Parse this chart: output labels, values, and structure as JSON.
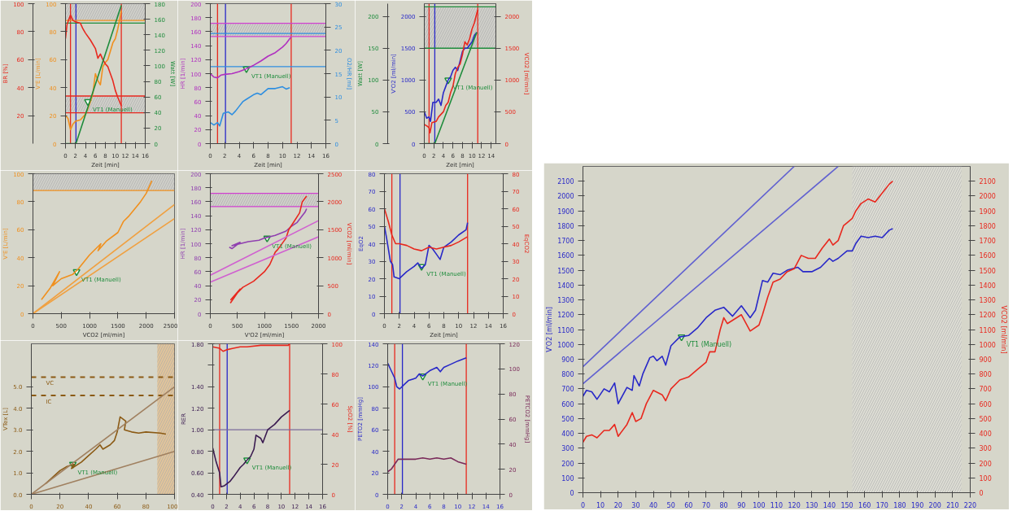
{
  "chart_data": [
    {
      "type": "line",
      "xlabel": "Zeit [min]",
      "ylabel": "V'E [L/min]",
      "y2label": "Watt [W]",
      "y3label": "BR [%]",
      "xlim": [
        0,
        16
      ],
      "xticks": [
        0,
        2,
        4,
        6,
        8,
        10,
        12,
        14,
        16
      ],
      "ylim": [
        0,
        100
      ],
      "yticks": [
        0,
        20,
        40,
        60,
        80,
        100
      ],
      "y2lim": [
        0,
        180
      ],
      "y2ticks": [
        0,
        20,
        40,
        60,
        80,
        100,
        120,
        140,
        160,
        180
      ],
      "y3lim": [
        0,
        100
      ],
      "y3ticks": [
        20,
        40,
        60,
        80,
        100
      ],
      "series": [
        {
          "color": "#f0901e",
          "x": [
            0,
            0.5,
            1,
            1.5,
            2,
            3,
            4,
            4.5,
            5,
            5.5,
            6,
            6.5,
            7,
            7.5,
            8,
            8.5,
            9,
            9.5,
            10,
            10.5,
            11.2
          ],
          "values": [
            20,
            18,
            10,
            14,
            16,
            17,
            21,
            25,
            30,
            36,
            50,
            45,
            42,
            55,
            58,
            60,
            66,
            72,
            75,
            82,
            95
          ]
        },
        {
          "color": "#e8281e",
          "axis": "y3",
          "x": [
            0,
            0.3,
            1,
            1.5,
            2,
            3,
            3.5,
            4,
            5,
            6,
            6.5,
            7,
            7.5,
            8,
            8.5,
            9,
            9.5,
            10,
            10.5,
            11.2
          ],
          "values": [
            75,
            85,
            92,
            88,
            87,
            86,
            82,
            79,
            74,
            68,
            61,
            64,
            60,
            57,
            55,
            50,
            45,
            38,
            33,
            27
          ]
        },
        {
          "color": "#1e8c3c",
          "axis": "y2",
          "x": [
            0,
            2.1,
            11.2
          ],
          "values": [
            0,
            0,
            178
          ]
        }
      ],
      "ref_lines": [
        {
          "axis": "x",
          "value": 1.0,
          "color": "#e8281e"
        },
        {
          "axis": "x",
          "value": 2.1,
          "color": "#2828c8"
        },
        {
          "axis": "x",
          "value": 11.2,
          "color": "#e8281e"
        },
        {
          "axis": "y",
          "value": 88,
          "color": "#f0901e"
        },
        {
          "axis": "y2",
          "value": 155,
          "color": "#1e8c3c"
        },
        {
          "axis": "y3",
          "value": 34,
          "color": "#e8281e"
        },
        {
          "axis": "y3",
          "value": 22,
          "color": "#e8281e"
        }
      ],
      "bands": [
        {
          "axis": "y3",
          "from": 22,
          "to": 34,
          "color": "#c8c8c8"
        },
        {
          "axis": "y",
          "from": 88,
          "to": 100,
          "color": "#c8c8c8"
        }
      ],
      "annotations": [
        {
          "text": "VT1 (Manuell)",
          "x": 4.5,
          "y": 30
        }
      ]
    },
    {
      "type": "line",
      "xlabel": "Zeit [min]",
      "ylabel": "HR [1/min]",
      "y2label": "O2/HR [ml]",
      "xlim": [
        0,
        16
      ],
      "xticks": [
        0,
        2,
        4,
        6,
        8,
        10,
        12,
        14,
        16
      ],
      "ylim": [
        0,
        200
      ],
      "yticks": [
        0,
        20,
        40,
        60,
        80,
        100,
        120,
        140,
        160,
        180,
        200
      ],
      "y2lim": [
        0,
        30
      ],
      "y2ticks": [
        0,
        5,
        10,
        15,
        20,
        25,
        30
      ],
      "series": [
        {
          "color": "#b030c0",
          "x": [
            0,
            0.5,
            1,
            1.5,
            2,
            3,
            4,
            5,
            6,
            7,
            8,
            9,
            10,
            10.5,
            11,
            11.2
          ],
          "values": [
            100,
            95,
            94,
            98,
            99,
            100,
            103,
            107,
            112,
            118,
            125,
            130,
            138,
            143,
            150,
            152
          ]
        },
        {
          "color": "#2e8ee0",
          "axis": "y2",
          "x": [
            0,
            0.5,
            1,
            1.3,
            1.8,
            2.5,
            3,
            3.5,
            4,
            4.5,
            5,
            6,
            6.5,
            7,
            8,
            9,
            10,
            10.5,
            11
          ],
          "values": [
            4.5,
            4,
            4.5,
            3.8,
            6.5,
            6.8,
            6.2,
            7,
            8,
            9,
            9.5,
            10.5,
            10.8,
            10.5,
            11.8,
            11.8,
            12.2,
            11.7,
            12
          ]
        }
      ],
      "ref_lines": [
        {
          "axis": "x",
          "value": 1.0,
          "color": "#e8281e"
        },
        {
          "axis": "x",
          "value": 2.1,
          "color": "#2828c8"
        },
        {
          "axis": "x",
          "value": 11.2,
          "color": "#e8281e"
        },
        {
          "axis": "y",
          "value": 172,
          "color": "#d040d0"
        },
        {
          "axis": "y",
          "value": 153,
          "color": "#d040d0"
        },
        {
          "axis": "y2",
          "value": 23.6,
          "color": "#2e8ee0"
        },
        {
          "axis": "y2",
          "value": 16.5,
          "color": "#2e8ee0"
        }
      ],
      "bands": [
        {
          "axis": "y",
          "from": 153,
          "to": 172,
          "color": "#c8c8c8"
        }
      ],
      "annotations": [
        {
          "text": "VT1 (Manuell)",
          "x": 5,
          "y": 107
        }
      ]
    },
    {
      "type": "line",
      "xlabel": "Zeit [min]",
      "ylabel": "V'O2 [ml/min]",
      "y2label": "VCO2 [ml/min]",
      "y3label": "Watt [W]",
      "xlim": [
        0,
        15
      ],
      "xticks": [
        0,
        2,
        4,
        6,
        8,
        10,
        12,
        14
      ],
      "ylim": [
        0,
        2200
      ],
      "yticks": [
        0,
        500,
        1000,
        1500,
        2000
      ],
      "y2lim": [
        0,
        2200
      ],
      "y2ticks": [
        0,
        500,
        1000,
        1500,
        2000
      ],
      "y3lim": [
        0,
        220
      ],
      "y3ticks": [
        0,
        50,
        100,
        150,
        200
      ],
      "series": [
        {
          "color": "#2828c8",
          "x": [
            0,
            0.5,
            1,
            1.3,
            1.8,
            2.5,
            3,
            3.5,
            4,
            4.5,
            5,
            5.5,
            6,
            6.5,
            7,
            7.5,
            8,
            8.5,
            9,
            10,
            10.5,
            11
          ],
          "values": [
            500,
            400,
            420,
            350,
            650,
            650,
            700,
            600,
            800,
            900,
            1000,
            1050,
            1150,
            1200,
            1150,
            1300,
            1450,
            1500,
            1500,
            1600,
            1700,
            1750
          ]
        },
        {
          "color": "#e8281e",
          "axis": "y2",
          "x": [
            0,
            0.5,
            1,
            1.2,
            1.6,
            2.5,
            3,
            4,
            4.5,
            5,
            5.5,
            6,
            6.5,
            7,
            7.5,
            8,
            8.5,
            9,
            9.5,
            10,
            10.5,
            11,
            11.2
          ],
          "values": [
            300,
            280,
            250,
            170,
            330,
            350,
            420,
            500,
            600,
            650,
            800,
            900,
            1100,
            1200,
            1250,
            1400,
            1600,
            1550,
            1650,
            1800,
            1900,
            2050,
            2100
          ]
        },
        {
          "color": "#1e8c3c",
          "axis": "y3",
          "x": [
            0,
            2.2,
            11
          ],
          "values": [
            0,
            0,
            175
          ]
        }
      ],
      "ref_lines": [
        {
          "axis": "x",
          "value": 1.0,
          "color": "#e8281e"
        },
        {
          "axis": "x",
          "value": 2.2,
          "color": "#2828c8"
        },
        {
          "axis": "x",
          "value": 11.2,
          "color": "#e8281e"
        },
        {
          "axis": "y",
          "value": 2150,
          "color": "#1e8c3c"
        },
        {
          "axis": "y",
          "value": 1500,
          "color": "#1e8c3c"
        }
      ],
      "bands": [
        {
          "axis": "y",
          "from": 1500,
          "to": 2150,
          "color": "#c8c8c8"
        }
      ],
      "annotations": [
        {
          "text": "VT1 (Manuell)",
          "x": 5,
          "y": 1000
        }
      ]
    },
    {
      "type": "line",
      "xlabel": "VCO2 [ml/min]",
      "ylabel": "V'E [L/min]",
      "xlim": [
        0,
        2500
      ],
      "xticks": [
        0,
        500,
        1000,
        1500,
        2000,
        2500
      ],
      "ylim": [
        0,
        100
      ],
      "yticks": [
        0,
        20,
        40,
        60,
        80,
        100
      ],
      "series": [
        {
          "color": "#f0901e",
          "x": [
            150,
            300,
            400,
            470,
            350,
            500,
            700,
            800,
            1000,
            1200,
            1150,
            1300,
            1500,
            1600,
            1700,
            1800,
            1900,
            2000,
            2100
          ],
          "values": [
            10,
            18,
            25,
            30,
            20,
            25,
            28,
            32,
            42,
            50,
            45,
            52,
            58,
            66,
            70,
            75,
            80,
            86,
            95
          ]
        },
        {
          "color": "#f0a040",
          "x": [
            0,
            2500
          ],
          "values": [
            0,
            78
          ]
        },
        {
          "color": "#f0a040",
          "x": [
            0,
            2500
          ],
          "values": [
            0,
            68
          ]
        }
      ],
      "ref_lines": [
        {
          "axis": "y",
          "value": 88,
          "color": "#f0901e"
        }
      ],
      "bands": [
        {
          "axis": "y",
          "from": 88,
          "to": 100,
          "color": "#c8c8c8"
        }
      ],
      "annotations": [
        {
          "text": "VT1 (Manuell)",
          "x": 770,
          "y": 30
        }
      ]
    },
    {
      "type": "line",
      "xlabel": "V'O2 [ml/min]",
      "ylabel": "HR [1/min]",
      "y2label": "VCO2 [ml/min]",
      "xlim": [
        0,
        2000
      ],
      "xticks": [
        0,
        500,
        1000,
        1500,
        2000
      ],
      "ylim": [
        0,
        200
      ],
      "yticks": [
        0,
        20,
        40,
        60,
        80,
        100,
        120,
        140,
        160,
        180,
        200
      ],
      "y2lim": [
        0,
        2500
      ],
      "y2ticks": [
        0,
        500,
        1000,
        1500,
        2000,
        2500
      ],
      "series": [
        {
          "color": "#9040b0",
          "x": [
            350,
            400,
            550,
            400,
            700,
            900,
            1000,
            1200,
            1400,
            1500,
            1600,
            1700,
            1750,
            1780
          ],
          "values": [
            95,
            93,
            102,
            97,
            103,
            105,
            108,
            112,
            118,
            125,
            130,
            140,
            145,
            150
          ]
        },
        {
          "color": "#e8281e",
          "axis": "y2",
          "x": [
            370,
            550,
            380,
            600,
            800,
            1000,
            1100,
            1200,
            1250,
            1400,
            1450,
            1550,
            1650,
            1700,
            1780
          ],
          "values": [
            190,
            440,
            250,
            470,
            580,
            750,
            880,
            1100,
            1150,
            1350,
            1500,
            1650,
            1800,
            2000,
            2100
          ]
        },
        {
          "color": "#d060d0",
          "x": [
            0,
            2000
          ],
          "values": [
            55,
            133
          ]
        },
        {
          "color": "#d060d0",
          "x": [
            0,
            2000
          ],
          "values": [
            45,
            110
          ]
        }
      ],
      "ref_lines": [
        {
          "axis": "y",
          "value": 172,
          "color": "#d040d0"
        },
        {
          "axis": "y",
          "value": 153,
          "color": "#d040d0"
        }
      ],
      "bands": [
        {
          "axis": "y",
          "from": 153,
          "to": 172,
          "color": "#c8c8c8"
        }
      ],
      "annotations": [
        {
          "text": "VT1 (Manuell)",
          "x": 1050,
          "y": 108
        }
      ]
    },
    {
      "type": "line",
      "xlabel": "Zeit [min]",
      "ylabel": "EqO2",
      "y2label": "EqCO2",
      "xlim": [
        0,
        16
      ],
      "xticks": [
        0,
        2,
        4,
        6,
        8,
        10,
        12,
        14,
        16
      ],
      "ylim": [
        0,
        80
      ],
      "yticks": [
        0,
        10,
        20,
        30,
        40,
        50,
        60,
        70,
        80
      ],
      "y2lim": [
        0,
        80
      ],
      "y2ticks": [
        0,
        10,
        20,
        30,
        40,
        50,
        60,
        70,
        80
      ],
      "series": [
        {
          "color": "#2828c8",
          "x": [
            0,
            0.3,
            0.8,
            1.1,
            1.3,
            2,
            2.5,
            3,
            4,
            4.5,
            5,
            5.5,
            6,
            6.5,
            7,
            7.5,
            8,
            9,
            10,
            11,
            11.2
          ],
          "values": [
            50,
            43,
            30,
            28,
            21,
            20,
            22,
            24,
            27,
            29,
            26,
            28,
            39,
            37,
            34,
            31,
            38,
            41,
            45,
            48,
            52
          ]
        },
        {
          "color": "#e8281e",
          "axis": "y2",
          "x": [
            0,
            0.5,
            1,
            1.5,
            2,
            3,
            4,
            5,
            6,
            7,
            8,
            9,
            10,
            11.2
          ],
          "values": [
            60,
            53,
            45,
            40,
            40,
            39,
            37,
            36,
            38,
            37,
            38,
            39,
            41,
            44
          ]
        }
      ],
      "ref_lines": [
        {
          "axis": "x",
          "value": 1.0,
          "color": "#e8281e"
        },
        {
          "axis": "x",
          "value": 2.1,
          "color": "#2828c8"
        },
        {
          "axis": "x",
          "value": 11.2,
          "color": "#e8281e"
        }
      ],
      "annotations": [
        {
          "text": "VT1 (Manuell)",
          "x": 5,
          "y": 27
        }
      ]
    },
    {
      "type": "line",
      "ylabel": "VTex [L]",
      "xlim": [
        0,
        100
      ],
      "xticks": [
        0,
        20,
        40,
        60,
        80,
        100
      ],
      "ylim": [
        0,
        7
      ],
      "yticks": [
        {
          "value": 0,
          "label": "0.0"
        },
        {
          "value": 1,
          "label": "1.0"
        },
        {
          "value": 2,
          "label": "2.0"
        },
        {
          "value": 3,
          "label": "3.0"
        },
        {
          "value": 4,
          "label": "4.0"
        },
        {
          "value": 5,
          "label": "5.0"
        }
      ],
      "series": [
        {
          "color": "#8b5a14",
          "x": [
            10,
            15,
            20,
            25,
            30,
            28,
            35,
            40,
            45,
            48,
            50,
            55,
            58,
            60,
            62,
            66,
            65,
            70,
            75,
            80,
            90,
            94
          ],
          "values": [
            0.5,
            0.8,
            1.1,
            1.3,
            1.4,
            1.2,
            1.5,
            1.8,
            2.1,
            2.3,
            2.1,
            2.3,
            2.5,
            2.9,
            3.6,
            3.4,
            3.0,
            2.9,
            2.85,
            2.9,
            2.85,
            2.8
          ]
        },
        {
          "color": "#a08060",
          "x": [
            0,
            100
          ],
          "values": [
            0,
            5.0
          ]
        },
        {
          "color": "#a08060",
          "x": [
            0,
            100
          ],
          "values": [
            0,
            2.0
          ]
        }
      ],
      "ref_lines": [
        {
          "axis": "y",
          "value": 5.45,
          "label": "VC",
          "color": "#8b5a14",
          "line_style": "dashed"
        },
        {
          "axis": "y",
          "value": 4.6,
          "label": "IC",
          "color": "#8b5a14",
          "line_style": "dashed"
        }
      ],
      "bands": [
        {
          "axis": "x",
          "from": 88,
          "to": 100,
          "color": "#f0b060"
        }
      ],
      "annotations": [
        {
          "text": "VT1 (Manuell)",
          "x": 29,
          "y": 1.4
        }
      ]
    },
    {
      "type": "line",
      "ylabel": "RER",
      "y2label": "SpO2 [%]",
      "xlim": [
        0,
        16
      ],
      "xticks": [
        0,
        2,
        4,
        6,
        8,
        10,
        12,
        14,
        16
      ],
      "ylim": [
        0.4,
        1.8
      ],
      "yticks": [
        {
          "value": 0.4,
          "label": "0.40"
        },
        {
          "value": 0.6,
          "label": "0.60"
        },
        {
          "value": 0.8,
          "label": "0.80"
        },
        {
          "value": 1.0,
          "label": "1.00"
        },
        {
          "value": 1.2,
          "label": "1.20"
        },
        {
          "value": 1.4,
          "label": "1.40"
        },
        {
          "value": 1.6,
          "label": null
        },
        {
          "value": 1.8,
          "label": "1.80"
        }
      ],
      "y2lim": [
        0,
        100
      ],
      "y2ticks": [
        0,
        20,
        40,
        60,
        80,
        100
      ],
      "series": [
        {
          "color": "#3a1a50",
          "x": [
            0,
            0.5,
            1,
            1.2,
            1.7,
            2.5,
            3,
            4,
            4.5,
            5,
            5.5,
            6,
            6.3,
            7,
            7.3,
            8,
            9,
            10,
            11.2
          ],
          "values": [
            0.83,
            0.7,
            0.6,
            0.47,
            0.48,
            0.52,
            0.56,
            0.65,
            0.68,
            0.72,
            0.75,
            0.82,
            0.95,
            0.92,
            0.88,
            1.0,
            1.05,
            1.12,
            1.18
          ]
        },
        {
          "color": "#e8281e",
          "axis": "y2",
          "x": [
            0,
            1,
            1.5,
            2,
            3,
            4,
            5,
            7,
            9,
            11,
            11.2
          ],
          "values": [
            98,
            97,
            95,
            96,
            97,
            98,
            98,
            99,
            99,
            99,
            100
          ]
        }
      ],
      "ref_lines": [
        {
          "axis": "x",
          "value": 1.0,
          "color": "#e8281e"
        },
        {
          "axis": "x",
          "value": 2.1,
          "color": "#2828c8"
        },
        {
          "axis": "x",
          "value": 11.2,
          "color": "#e8281e"
        },
        {
          "axis": "y",
          "value": 1.0,
          "color": "#7a6a9a"
        }
      ],
      "annotations": [
        {
          "text": "VT1 (Manuell)",
          "x": 5,
          "y": 0.72
        }
      ]
    },
    {
      "type": "line",
      "ylabel": "PETO2 [mmHg]",
      "y2label": "PETCO2 [mmHg]",
      "xlim": [
        0,
        16
      ],
      "xticks": [
        0,
        2,
        4,
        6,
        8,
        10,
        12,
        14,
        16
      ],
      "ylim": [
        0,
        140
      ],
      "yticks": [
        0,
        20,
        40,
        60,
        80,
        100,
        120,
        140
      ],
      "y2lim": [
        0,
        120
      ],
      "y2ticks": [
        0,
        20,
        40,
        60,
        80,
        100,
        120
      ],
      "series": [
        {
          "color": "#2828c8",
          "x": [
            0,
            0.5,
            1,
            1.3,
            1.7,
            2.5,
            3,
            4,
            4.5,
            5,
            6,
            7,
            7.5,
            8,
            9,
            10,
            11.2
          ],
          "values": [
            122,
            115,
            108,
            100,
            98,
            103,
            106,
            108,
            112,
            110,
            115,
            118,
            114,
            118,
            121,
            124,
            127
          ]
        },
        {
          "color": "#7a2a5a",
          "axis": "y2",
          "x": [
            0,
            0.5,
            1,
            1.5,
            2,
            3,
            4,
            5,
            6,
            7,
            8,
            9,
            10,
            11.2
          ],
          "values": [
            18,
            20,
            24,
            28,
            28,
            28,
            28,
            29,
            28,
            29,
            28,
            29,
            26,
            24
          ]
        }
      ],
      "ref_lines": [
        {
          "axis": "x",
          "value": 1.0,
          "color": "#e8281e"
        },
        {
          "axis": "x",
          "value": 2.1,
          "color": "#2828c8"
        },
        {
          "axis": "x",
          "value": 11.2,
          "color": "#e8281e"
        }
      ],
      "annotations": [
        {
          "text": "VT1 (Manuell)",
          "x": 5,
          "y": 110
        }
      ]
    },
    {
      "type": "line",
      "ylabel": "V'O2 [ml/min]",
      "y2label": "VCO2 [ml/min]",
      "xlim": [
        0,
        220
      ],
      "xticks": [
        0,
        10,
        20,
        30,
        40,
        50,
        60,
        70,
        80,
        90,
        100,
        110,
        120,
        130,
        140,
        150,
        160,
        170,
        180,
        190,
        200,
        210,
        220
      ],
      "ylim": [
        0,
        2200
      ],
      "yticks": [
        0,
        100,
        200,
        300,
        400,
        500,
        600,
        700,
        800,
        900,
        1000,
        1100,
        1200,
        1300,
        1400,
        1500,
        1600,
        1700,
        1800,
        1900,
        2000,
        2100
      ],
      "y2lim": [
        0,
        2200
      ],
      "y2ticks": [
        0,
        100,
        200,
        300,
        400,
        500,
        600,
        700,
        800,
        900,
        1000,
        1100,
        1200,
        1300,
        1400,
        1500,
        1600,
        1700,
        1800,
        1900,
        2000,
        2100
      ],
      "series": [
        {
          "color": "#2828c8",
          "x": [
            0,
            2,
            5,
            8,
            12,
            15,
            18,
            20,
            25,
            28,
            29,
            32,
            34,
            38,
            40,
            42,
            45,
            47,
            50,
            55,
            60,
            65,
            70,
            75,
            80,
            85,
            90,
            95,
            98,
            102,
            105,
            108,
            112,
            116,
            122,
            125,
            130,
            135,
            140,
            142,
            145,
            150,
            153,
            155,
            158,
            162,
            166,
            170,
            174,
            176
          ],
          "values": [
            650,
            690,
            680,
            630,
            700,
            680,
            740,
            600,
            710,
            690,
            790,
            720,
            800,
            910,
            920,
            890,
            920,
            860,
            990,
            1050,
            1060,
            1110,
            1180,
            1230,
            1250,
            1190,
            1260,
            1180,
            1230,
            1430,
            1420,
            1480,
            1470,
            1500,
            1520,
            1490,
            1490,
            1520,
            1580,
            1560,
            1580,
            1630,
            1630,
            1680,
            1730,
            1720,
            1730,
            1720,
            1770,
            1780
          ]
        },
        {
          "color": "#e8281e",
          "axis": "y2",
          "x": [
            0,
            2,
            5,
            8,
            12,
            15,
            18,
            20,
            25,
            28,
            30,
            33,
            36,
            40,
            45,
            47,
            50,
            55,
            60,
            65,
            70,
            72,
            75,
            78,
            80,
            82,
            90,
            95,
            100,
            102,
            105,
            108,
            112,
            116,
            120,
            124,
            128,
            132,
            136,
            140,
            142,
            145,
            148,
            150,
            153,
            155,
            158,
            162,
            166,
            170,
            174,
            176
          ],
          "values": [
            340,
            380,
            390,
            370,
            420,
            420,
            460,
            380,
            460,
            540,
            480,
            500,
            600,
            690,
            660,
            620,
            700,
            760,
            780,
            830,
            880,
            950,
            950,
            1100,
            1180,
            1140,
            1200,
            1090,
            1130,
            1200,
            1320,
            1420,
            1440,
            1490,
            1510,
            1600,
            1580,
            1580,
            1650,
            1710,
            1670,
            1700,
            1800,
            1820,
            1850,
            1900,
            1950,
            1980,
            1960,
            2020,
            2080,
            2100
          ]
        },
        {
          "color": "#6060d0",
          "x": [
            0,
            120
          ],
          "values": [
            850,
            2200
          ]
        },
        {
          "color": "#6060d0",
          "x": [
            0,
            145
          ],
          "values": [
            735,
            2200
          ]
        }
      ],
      "bands": [
        {
          "axis": "x",
          "from": 153,
          "to": 215,
          "color": "#e6e6e0"
        }
      ],
      "annotations": [
        {
          "text": "VT1 (Manuell)",
          "x": 56,
          "y": 1050
        }
      ]
    }
  ]
}
